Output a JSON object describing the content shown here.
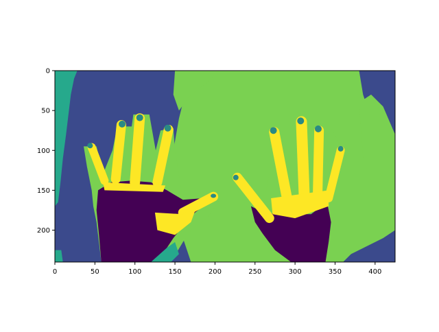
{
  "chart_data": {
    "type": "heatmap",
    "title": "",
    "xlabel": "",
    "ylabel": "",
    "image_width": 425,
    "image_height": 240,
    "xlim": [
      0,
      425
    ],
    "ylim": [
      240,
      0
    ],
    "x_ticks": [
      0,
      50,
      100,
      150,
      200,
      250,
      300,
      350,
      400
    ],
    "y_ticks": [
      0,
      50,
      100,
      150,
      200
    ],
    "colormap": "viridis",
    "palette": {
      "class_0": "#440154",
      "class_1": "#3b4a8c",
      "class_2": "#2a8a85",
      "class_3": "#26a98c",
      "class_4": "#7ad151",
      "class_5": "#fde725"
    },
    "regions": [
      {
        "label": "background",
        "class": 1
      },
      {
        "label": "top-left-patch",
        "class": 3
      },
      {
        "label": "body",
        "class": 4
      },
      {
        "label": "left-palm",
        "class": 0
      },
      {
        "label": "right-palm",
        "class": 0
      },
      {
        "label": "left-fingers",
        "class": 5
      },
      {
        "label": "right-fingers",
        "class": 5
      },
      {
        "label": "fingernails",
        "class": 2
      }
    ]
  }
}
